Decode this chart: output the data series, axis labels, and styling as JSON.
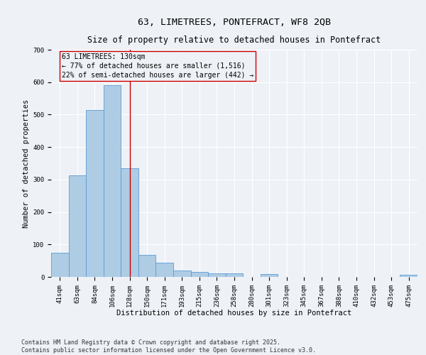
{
  "title1": "63, LIMETREES, PONTEFRACT, WF8 2QB",
  "title2": "Size of property relative to detached houses in Pontefract",
  "xlabel": "Distribution of detached houses by size in Pontefract",
  "ylabel": "Number of detached properties",
  "categories": [
    "41sqm",
    "63sqm",
    "84sqm",
    "106sqm",
    "128sqm",
    "150sqm",
    "171sqm",
    "193sqm",
    "215sqm",
    "236sqm",
    "258sqm",
    "280sqm",
    "301sqm",
    "323sqm",
    "345sqm",
    "367sqm",
    "388sqm",
    "410sqm",
    "432sqm",
    "453sqm",
    "475sqm"
  ],
  "values": [
    75,
    312,
    513,
    590,
    335,
    68,
    43,
    19,
    15,
    11,
    12,
    0,
    8,
    0,
    0,
    0,
    0,
    0,
    0,
    0,
    6
  ],
  "bar_color": "#aecce4",
  "bar_edge_color": "#5b9bd5",
  "vline_x": 4,
  "vline_color": "#cc0000",
  "annotation_title": "63 LIMETREES: 130sqm",
  "annotation_line1": "← 77% of detached houses are smaller (1,516)",
  "annotation_line2": "22% of semi-detached houses are larger (442) →",
  "annotation_box_color": "#cc0000",
  "ylim": [
    0,
    700
  ],
  "yticks": [
    0,
    100,
    200,
    300,
    400,
    500,
    600,
    700
  ],
  "footer1": "Contains HM Land Registry data © Crown copyright and database right 2025.",
  "footer2": "Contains public sector information licensed under the Open Government Licence v3.0.",
  "background_color": "#eef2f7",
  "grid_color": "#ffffff",
  "title_fontsize": 9.5,
  "subtitle_fontsize": 8.5,
  "axis_label_fontsize": 7.5,
  "tick_fontsize": 6.5,
  "annotation_fontsize": 7,
  "footer_fontsize": 6
}
